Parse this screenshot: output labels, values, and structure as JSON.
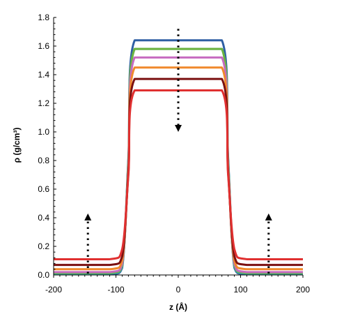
{
  "chart_data": {
    "type": "line",
    "title": "",
    "xlabel": "z (Å)",
    "ylabel": "ρ (g/cm³)",
    "xlim": [
      -200,
      200
    ],
    "ylim": [
      0,
      1.8
    ],
    "xticks": [
      -200,
      -100,
      0,
      100,
      200
    ],
    "yticks": [
      0.0,
      0.2,
      0.4,
      0.6,
      0.8,
      1.0,
      1.2,
      1.4,
      1.6,
      1.8
    ],
    "xtick_labels": [
      "-200",
      "-100",
      "0",
      "100",
      "200"
    ],
    "ytick_labels": [
      "0.0",
      "0.2",
      "0.4",
      "0.6",
      "0.8",
      "1.0",
      "1.2",
      "1.4",
      "1.6",
      "1.8"
    ],
    "grid": false,
    "legend": "none",
    "series": [
      {
        "color": "#2e5fa3",
        "x": [
          -200,
          -110,
          -90,
          -80,
          -70,
          0,
          70,
          80,
          90,
          110,
          200
        ],
        "y": [
          0.005,
          0.005,
          0.05,
          0.82,
          1.64,
          1.64,
          1.64,
          0.82,
          0.05,
          0.005,
          0.005
        ]
      },
      {
        "color": "#3aaa9c",
        "x": [
          -200,
          -110,
          -90,
          -80,
          -70,
          0,
          70,
          80,
          90,
          110,
          200
        ],
        "y": [
          0.01,
          0.01,
          0.06,
          0.8,
          1.58,
          1.58,
          1.58,
          0.8,
          0.06,
          0.01,
          0.01
        ]
      },
      {
        "color": "#6cb33f",
        "x": [
          -200,
          -110,
          -90,
          -80,
          -70,
          0,
          70,
          80,
          90,
          110,
          200
        ],
        "y": [
          0.015,
          0.015,
          0.07,
          0.78,
          1.58,
          1.58,
          1.58,
          0.78,
          0.07,
          0.015,
          0.015
        ]
      },
      {
        "color": "#c66bc0",
        "x": [
          -200,
          -110,
          -90,
          -80,
          -70,
          0,
          70,
          80,
          90,
          110,
          200
        ],
        "y": [
          0.02,
          0.02,
          0.08,
          0.76,
          1.52,
          1.52,
          1.52,
          0.76,
          0.08,
          0.02,
          0.02
        ]
      },
      {
        "color": "#f0892c",
        "x": [
          -200,
          -110,
          -90,
          -80,
          -70,
          0,
          70,
          80,
          90,
          110,
          200
        ],
        "y": [
          0.04,
          0.04,
          0.1,
          0.74,
          1.45,
          1.45,
          1.45,
          0.74,
          0.1,
          0.04,
          0.04
        ]
      },
      {
        "color": "#7b1010",
        "x": [
          -200,
          -110,
          -90,
          -80,
          -70,
          0,
          70,
          80,
          90,
          110,
          200
        ],
        "y": [
          0.07,
          0.07,
          0.13,
          0.72,
          1.37,
          1.37,
          1.37,
          0.72,
          0.13,
          0.07,
          0.07
        ]
      },
      {
        "color": "#e03030",
        "x": [
          -200,
          -110,
          -90,
          -80,
          -70,
          0,
          70,
          80,
          90,
          110,
          200
        ],
        "y": [
          0.11,
          0.11,
          0.18,
          0.7,
          1.29,
          1.29,
          1.29,
          0.7,
          0.18,
          0.11,
          0.11
        ]
      }
    ],
    "annotations": [
      {
        "type": "dotted-arrow",
        "direction": "down",
        "x": 0,
        "y_from": 1.72,
        "y_to": 1.0
      },
      {
        "type": "dotted-arrow",
        "direction": "up",
        "x": -145,
        "y_from": 0.01,
        "y_to": 0.43
      },
      {
        "type": "dotted-arrow",
        "direction": "up",
        "x": 145,
        "y_from": 0.01,
        "y_to": 0.43
      }
    ]
  }
}
